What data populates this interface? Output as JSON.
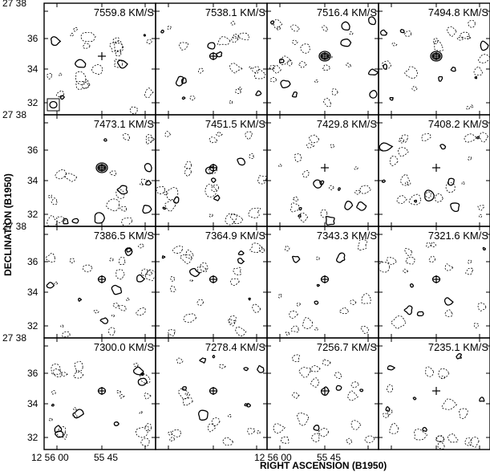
{
  "figure": {
    "velocity_unit": "KM/S",
    "ylabel": "DECLINATION (B1950)",
    "xlabel": "RIGHT ASCENSION (B1950)",
    "dec_tick_labels": [
      "38",
      "36",
      "34",
      "32"
    ],
    "dec_corner_label": "27 38",
    "ra_tick_labels": [
      "12 56 00",
      "55 45"
    ],
    "panels": [
      {
        "velocity": "7559.8 KM/S",
        "beam": true
      },
      {
        "velocity": "7538.1 KM/S"
      },
      {
        "velocity": "7516.4 KM/S"
      },
      {
        "velocity": "7494.8 KM/S"
      },
      {
        "velocity": "7473.1 KM/S"
      },
      {
        "velocity": "7451.5 KM/S"
      },
      {
        "velocity": "7429.8 KM/S"
      },
      {
        "velocity": "7408.2 KM/S"
      },
      {
        "velocity": "7386.5 KM/S"
      },
      {
        "velocity": "7364.9 KM/S"
      },
      {
        "velocity": "7343.3 KM/S"
      },
      {
        "velocity": "7321.6 KM/S"
      },
      {
        "velocity": "7300.0 KM/S"
      },
      {
        "velocity": "7278.4 KM/S"
      },
      {
        "velocity": "7256.7 KM/S"
      },
      {
        "velocity": "7235.1 KM/S"
      }
    ]
  }
}
